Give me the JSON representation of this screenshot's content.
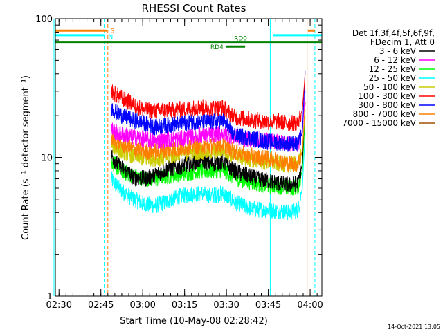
{
  "chart_data": {
    "type": "line",
    "title": "RHESSI Count Rates",
    "xlabel": "Start Time (10-May-08 02:28:42)",
    "ylabel": "Count Rate (s⁻¹ detector segment⁻¹)",
    "yscale": "log",
    "xlim_minutes": [
      0,
      95.5
    ],
    "ylim": [
      1,
      100
    ],
    "x_ticks": [
      {
        "label": "02:30",
        "min": 1.3
      },
      {
        "label": "02:45",
        "min": 16.3
      },
      {
        "label": "03:00",
        "min": 31.3
      },
      {
        "label": "03:15",
        "min": 46.3
      },
      {
        "label": "03:30",
        "min": 61.3
      },
      {
        "label": "03:45",
        "min": 76.3
      },
      {
        "label": "04:00",
        "min": 91.3
      }
    ],
    "y_ticks": [
      {
        "label": "1",
        "value": 1
      },
      {
        "label": "10",
        "value": 10
      },
      {
        "label": "100",
        "value": 100
      }
    ],
    "legend_header": [
      "Det 1f,3f,4f,5f,6f,9f,",
      "FDecim 1, Att 0"
    ],
    "legend_position": "right",
    "series": [
      {
        "name": "3 - 6 keV",
        "color": "#000000",
        "x": [
          20,
          22,
          25,
          28,
          32,
          36,
          40,
          44,
          48,
          52,
          56,
          60,
          64,
          68,
          72,
          76,
          80,
          84,
          87,
          88.5,
          89.5
        ],
        "y": [
          10.5,
          9,
          8,
          7.2,
          7,
          7.5,
          8.2,
          8.5,
          9,
          9.5,
          9,
          9.3,
          8,
          7.5,
          7,
          6.8,
          6.5,
          6.3,
          6.5,
          9,
          25
        ]
      },
      {
        "name": "6 - 12 keV",
        "color": "#ff00ff",
        "x": [
          20,
          22,
          25,
          28,
          32,
          36,
          40,
          44,
          48,
          52,
          56,
          60,
          64,
          68,
          72,
          76,
          80,
          84,
          87,
          88.5,
          89.5
        ],
        "y": [
          16,
          15,
          14.5,
          14,
          13.5,
          13,
          13.5,
          13.5,
          14,
          14.5,
          14.5,
          15,
          14,
          13.5,
          13.5,
          13.2,
          13,
          12.5,
          12.5,
          15,
          30
        ]
      },
      {
        "name": "12 - 25 keV",
        "color": "#00ff00",
        "x": [
          20,
          22,
          25,
          28,
          32,
          36,
          40,
          44,
          48,
          52,
          56,
          60,
          64,
          68,
          72,
          76,
          80,
          84,
          87,
          88.5,
          89.5
        ],
        "y": [
          9.5,
          8.5,
          7.8,
          7.3,
          7,
          7,
          7.3,
          7.6,
          7.8,
          8,
          8,
          8.2,
          7.2,
          6.8,
          6.5,
          6.3,
          6.2,
          6,
          6.2,
          8,
          20
        ]
      },
      {
        "name": "25 - 50 keV",
        "color": "#00ffff",
        "x": [
          20,
          22,
          25,
          28,
          32,
          36,
          40,
          44,
          48,
          52,
          56,
          60,
          64,
          68,
          72,
          76,
          80,
          84,
          87,
          88.5,
          89.5
        ],
        "y": [
          7,
          6.2,
          5.5,
          5,
          4.6,
          4.5,
          4.8,
          5.2,
          5.4,
          5.5,
          5.3,
          5.5,
          4.8,
          4.4,
          4.2,
          4.2,
          4.1,
          4,
          4.2,
          6,
          15
        ]
      },
      {
        "name": "50 - 100 keV",
        "color": "#cccc00",
        "x": [
          20,
          22,
          25,
          28,
          32,
          36,
          40,
          44,
          48,
          52,
          56,
          60,
          64,
          68,
          72,
          76,
          80,
          84,
          87,
          88.5,
          89.5
        ],
        "y": [
          12.5,
          11.5,
          10.8,
          10.2,
          9.8,
          9.8,
          10,
          10.5,
          10.8,
          11,
          11,
          11.3,
          10.3,
          9.8,
          9.5,
          9.3,
          9,
          8.8,
          9,
          11,
          22
        ]
      },
      {
        "name": "100 - 300 keV",
        "color": "#ff0000",
        "x": [
          20,
          22,
          25,
          28,
          32,
          36,
          40,
          44,
          48,
          52,
          56,
          60,
          64,
          68,
          72,
          76,
          80,
          84,
          87,
          88.5,
          89.5
        ],
        "y": [
          30,
          28,
          26,
          24,
          22,
          21.5,
          22,
          22,
          22.5,
          23,
          22.5,
          23,
          19.5,
          19,
          18.5,
          18,
          18,
          17.5,
          18,
          22,
          40
        ]
      },
      {
        "name": "300 - 800 keV",
        "color": "#0000ff",
        "x": [
          20,
          22,
          25,
          28,
          32,
          36,
          40,
          44,
          48,
          52,
          56,
          60,
          64,
          68,
          72,
          76,
          80,
          84,
          87,
          88.5,
          89.5
        ],
        "y": [
          23,
          21,
          19.5,
          18.5,
          17.5,
          16.5,
          17,
          17.5,
          18,
          18,
          18,
          18.5,
          14.5,
          14,
          13.5,
          13,
          12.8,
          12.5,
          12.5,
          15,
          42
        ]
      },
      {
        "name": "800 - 7000 keV",
        "color": "#ff8000",
        "x": [
          20,
          22,
          25,
          28,
          32,
          36,
          40,
          44,
          48,
          52,
          56,
          60,
          64,
          68,
          72,
          76,
          80,
          84,
          87,
          88.5,
          89.5
        ],
        "y": [
          14,
          12.8,
          12,
          11.5,
          11,
          11,
          11.3,
          11.5,
          12,
          12.2,
          12,
          12.5,
          11,
          10.5,
          10,
          9.8,
          9.5,
          9,
          9,
          11,
          25
        ]
      },
      {
        "name": "7000 - 15000 keV",
        "color": "#a05000",
        "x": [],
        "y": []
      }
    ],
    "annotations": {
      "vlines_cyan_solid": [
        -0.5,
        77
      ],
      "vlines_cyan_dashed": [
        17.5,
        93
      ],
      "vlines_orange_dashed": [
        18.8
      ],
      "vlines_orange_solid": [
        90.2
      ],
      "flag_bars": [
        {
          "label": "S",
          "color": "#ff8000",
          "x0": 0,
          "x1": 18.5,
          "level": 82,
          "x2": 90.5,
          "x3": 93,
          "level2": 82
        },
        {
          "label": "N",
          "color": "#00ffff",
          "x0": 0,
          "x1": 17.5,
          "level": 76,
          "x2": 78,
          "x3": 95.5,
          "level2": 76
        },
        {
          "label": "RD0",
          "color": "#008000",
          "x0": 0,
          "x1": 95.5,
          "level": 68
        },
        {
          "label": "RD4",
          "color": "#008000",
          "x0": 61,
          "x1": 68,
          "level": 63
        }
      ]
    }
  },
  "footer": {
    "date_stamp": "14-Oct-2021 13:05"
  }
}
